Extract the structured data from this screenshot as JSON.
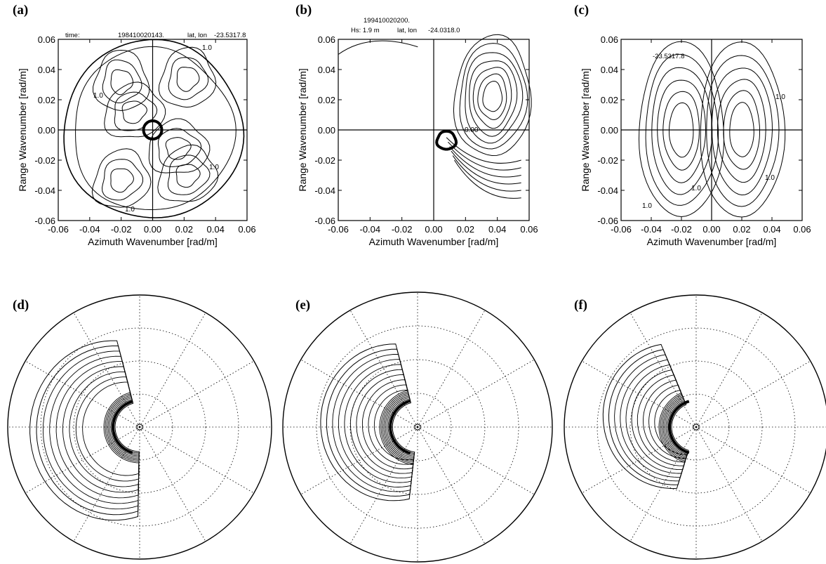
{
  "chart_data": [
    {
      "panel": "(a)",
      "type": "contour",
      "header": [
        "time:",
        "198410020143.",
        "lat, lon",
        "-23.5317.8"
      ],
      "xlabel": "Azimuth Wavenumber [rad/m]",
      "ylabel": "Range Wavenumber [rad/m]",
      "xlim": [
        -0.06,
        0.06
      ],
      "ylim": [
        -0.06,
        0.06
      ],
      "xticks": [
        "-0.06",
        "-0.04",
        "-0.02",
        "0.00",
        "0.02",
        "0.04",
        "0.06"
      ],
      "yticks": [
        "0.06",
        "0.04",
        "0.02",
        "0.00",
        "-0.02",
        "-0.04",
        "-0.06"
      ],
      "contour_labels": [
        "1.0",
        "1.0",
        "1.0",
        "1.0"
      ],
      "structure": "circular spectrum of radius ~0.06 with four-lobed blobs at about (±0.02, ±0.035) and (±0.015, -0.015); central ring at origin"
    },
    {
      "panel": "(b)",
      "type": "contour",
      "header": [
        "199410020200.",
        "Hs: 1.9 m",
        "lat, lon",
        "-24.0318.0"
      ],
      "xlabel": "Azimuth Wavenumber [rad/m]",
      "ylabel": "Range Wavenumber [rad/m]",
      "xlim": [
        -0.06,
        0.06
      ],
      "ylim": [
        -0.06,
        0.06
      ],
      "xticks": [
        "-0.06",
        "-0.04",
        "-0.02",
        "0.00",
        "0.02",
        "0.04",
        "0.06"
      ],
      "yticks": [
        "0.06",
        "0.04",
        "0.02",
        "0.00",
        "-0.02",
        "-0.04",
        "-0.06"
      ],
      "contour_labels": [
        "0.00"
      ],
      "structure": "single peak at about (0.04, 0.03) in upper-right quadrant with contours wrapping to (0.01, -0.01)"
    },
    {
      "panel": "(c)",
      "type": "contour",
      "header": [
        "-23.5317.8"
      ],
      "xlabel": "Azimuth Wavenumber [rad/m]",
      "ylabel": "Range Wavenumber [rad/m]",
      "xlim": [
        -0.06,
        0.06
      ],
      "ylim": [
        -0.06,
        0.06
      ],
      "xticks": [
        "-0.06",
        "-0.04",
        "-0.02",
        "0.00",
        "0.02",
        "0.04",
        "0.06"
      ],
      "yticks": [
        "0.06",
        "0.04",
        "0.02",
        "0.00",
        "-0.02",
        "-0.04",
        "-0.06"
      ],
      "contour_labels": [
        "1.0",
        "1.0",
        "1.0",
        "1.0"
      ],
      "structure": "symmetric pair of lobes centred at about (±0.02, 0.0), elongated in range"
    },
    {
      "panel": "(d)",
      "type": "polar_contour",
      "rings": 4,
      "spokes": 12,
      "structure": "crescent-shaped spectrum on the west side, outer lobe toward southwest"
    },
    {
      "panel": "(e)",
      "type": "polar_contour",
      "rings": 4,
      "spokes": 12,
      "structure": "crescent-shaped spectrum on the west side, tail toward south-southwest"
    },
    {
      "panel": "(f)",
      "type": "polar_contour",
      "rings": 4,
      "spokes": 12,
      "structure": "compact crescent-shaped spectrum on the west side with peak toward north"
    }
  ]
}
